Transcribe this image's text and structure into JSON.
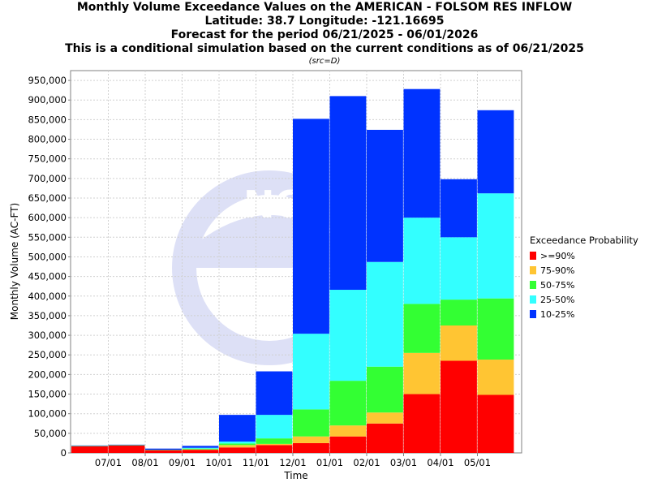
{
  "title_lines": [
    "Monthly Volume Exceedance Values on the AMERICAN - FOLSOM RES INFLOW",
    "Latitude: 38.7 Longitude: -121.16695",
    "Forecast for the period 06/21/2025 - 06/01/2026",
    "This is a conditional simulation based on the current conditions as of 06/21/2025"
  ],
  "src_label": "(src=D)",
  "chart_data": {
    "type": "bar",
    "stacked": true,
    "xlabel": "Time",
    "ylabel": "Monthly Volume (AC-FT)",
    "ylim": [
      0,
      975000
    ],
    "y_ticks": [
      0,
      50000,
      100000,
      150000,
      200000,
      250000,
      300000,
      350000,
      400000,
      450000,
      500000,
      550000,
      600000,
      650000,
      700000,
      750000,
      800000,
      850000,
      900000,
      950000
    ],
    "y_tick_labels": [
      "0",
      "50,000",
      "100,000",
      "150,000",
      "200,000",
      "250,000",
      "300,000",
      "350,000",
      "400,000",
      "450,000",
      "500,000",
      "550,000",
      "600,000",
      "650,000",
      "700,000",
      "750,000",
      "800,000",
      "850,000",
      "900,000",
      "950,000"
    ],
    "x_tick_labels": [
      "07/01",
      "08/01",
      "09/01",
      "10/01",
      "11/01",
      "12/01",
      "01/01",
      "02/01",
      "03/01",
      "04/01",
      "05/01"
    ],
    "grid": true,
    "legend_title": "Exceedance Probability",
    "legend_position": "right",
    "series": [
      {
        "name": ">=90%",
        "color": "#ff0000",
        "values": [
          17000,
          19000,
          7000,
          8000,
          14000,
          20000,
          25000,
          42000,
          75000,
          150000,
          235000,
          148000
        ]
      },
      {
        "name": "75-90%",
        "color": "#ffc533",
        "values": [
          0,
          0,
          0,
          1000,
          6000,
          3000,
          17000,
          28000,
          28000,
          105000,
          90000,
          90000
        ]
      },
      {
        "name": "50-75%",
        "color": "#33ff33",
        "values": [
          1000,
          1000,
          1000,
          2000,
          4000,
          14000,
          69000,
          114000,
          117000,
          125000,
          66000,
          156000
        ]
      },
      {
        "name": "25-50%",
        "color": "#33ffff",
        "values": [
          0,
          0,
          0,
          2000,
          5000,
          60000,
          193000,
          232000,
          267000,
          220000,
          159000,
          268000
        ]
      },
      {
        "name": "10-25%",
        "color": "#0033ff",
        "values": [
          1000,
          1000,
          3000,
          5000,
          68000,
          111000,
          548000,
          494000,
          337000,
          328000,
          148000,
          212000
        ]
      }
    ]
  }
}
